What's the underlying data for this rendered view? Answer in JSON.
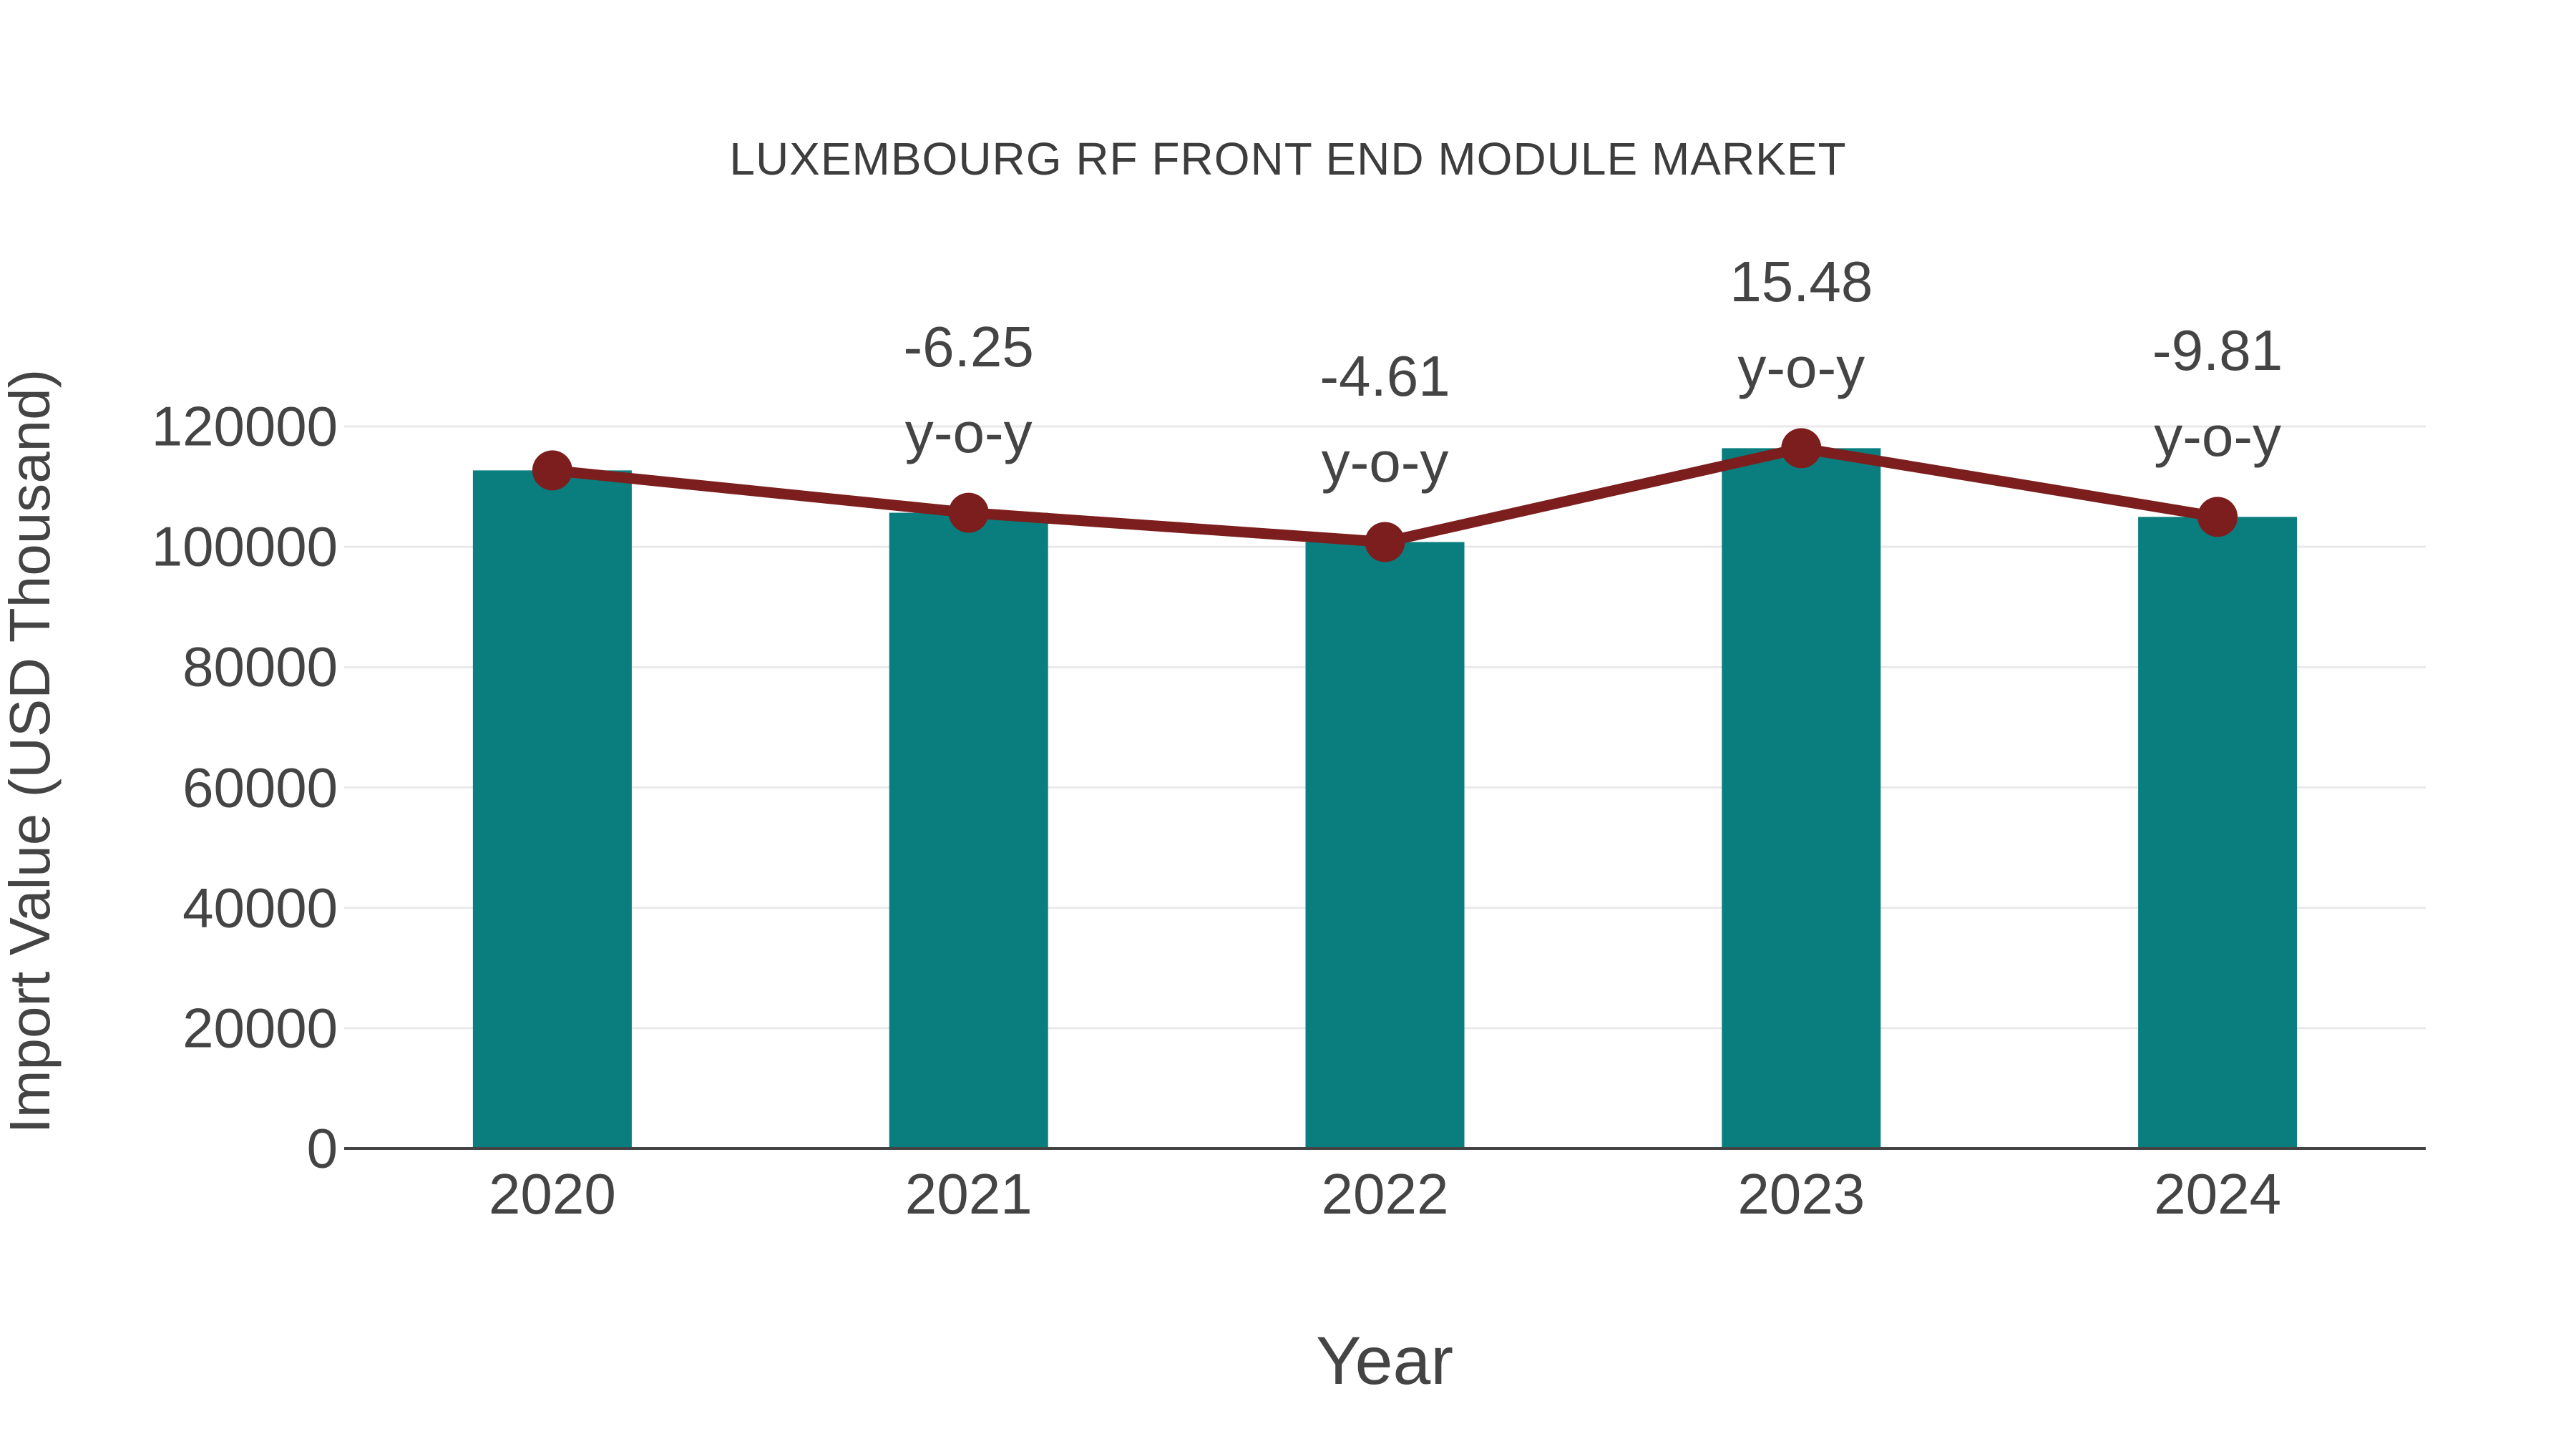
{
  "title": "LUXEMBOURG RF FRONT END MODULE MARKET",
  "chart_data": {
    "type": "bar",
    "title": "LUXEMBOURG RF FRONT END MODULE MARKET",
    "categories": [
      "2020",
      "2021",
      "2022",
      "2023",
      "2024"
    ],
    "series": [
      {
        "name": "Import Value (bars)",
        "type": "bar",
        "values": [
          112700,
          105660,
          100790,
          116390,
          104970
        ]
      },
      {
        "name": "Import Value (trend line)",
        "type": "line",
        "values": [
          112700,
          105660,
          100790,
          116390,
          104970
        ]
      }
    ],
    "annotations": [
      {
        "category": "2021",
        "line1": "-6.25",
        "line2": "y-o-y"
      },
      {
        "category": "2022",
        "line1": "-4.61",
        "line2": "y-o-y"
      },
      {
        "category": "2023",
        "line1": "15.48",
        "line2": "y-o-y"
      },
      {
        "category": "2024",
        "line1": "-9.81",
        "line2": "y-o-y"
      }
    ],
    "xlabel": "Year",
    "ylabel": "Import Value (USD Thousand)",
    "ylim": [
      0,
      120000
    ],
    "yticks": [
      0,
      20000,
      40000,
      60000,
      80000,
      100000,
      120000
    ],
    "grid": true,
    "legend": "none",
    "colors": {
      "bar": "#0a7e7f",
      "line": "#7d1e1e",
      "marker": "#7d1e1e",
      "grid": "#e9e9e9",
      "axis": "#444444",
      "text": "#444444"
    }
  }
}
